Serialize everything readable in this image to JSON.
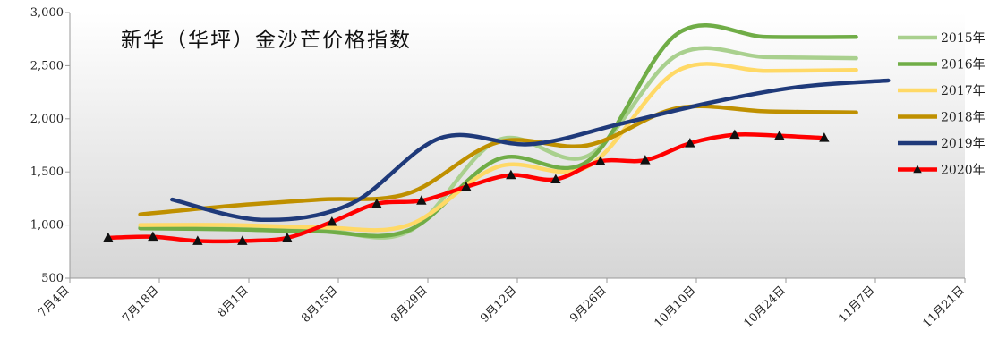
{
  "chart_data": {
    "type": "line",
    "title": "新华（华坪）金沙芒价格指数",
    "xlabel": "",
    "ylabel": "",
    "x_ticks": [
      "7月4日",
      "7月18日",
      "8月1日",
      "8月15日",
      "8月29日",
      "9月12日",
      "9月26日",
      "10月10日",
      "10月24日",
      "11月7日",
      "11月21日"
    ],
    "ylim": [
      500,
      3000
    ],
    "y_ticks": [
      "500",
      "1,000",
      "1,500",
      "2,000",
      "2,500",
      "3,000"
    ],
    "grid": false,
    "legend_position": "right",
    "series": [
      {
        "name": "2015年",
        "color": "#a9d08e",
        "marker": "none",
        "x": [
          "7月15日",
          "7月29日",
          "8月12日",
          "8月26日",
          "9月9日",
          "9月23日",
          "10月7日",
          "10月21日",
          "11月4日"
        ],
        "values": [
          980,
          970,
          960,
          940,
          1800,
          1650,
          2600,
          2580,
          2570
        ]
      },
      {
        "name": "2016年",
        "color": "#70ad47",
        "marker": "none",
        "x": [
          "7月15日",
          "7月29日",
          "8月12日",
          "8月26日",
          "9月9日",
          "9月23日",
          "10月7日",
          "10月21日",
          "11月4日"
        ],
        "values": [
          970,
          960,
          940,
          950,
          1620,
          1600,
          2800,
          2770,
          2770
        ]
      },
      {
        "name": "2017年",
        "color": "#ffd966",
        "marker": "none",
        "x": [
          "7月15日",
          "7月29日",
          "8月12日",
          "8月26日",
          "9月9日",
          "9月23日",
          "10月7日",
          "10月21日",
          "11月4日"
        ],
        "values": [
          1000,
          1000,
          980,
          1000,
          1550,
          1550,
          2450,
          2450,
          2460
        ]
      },
      {
        "name": "2018年",
        "color": "#bf9000",
        "marker": "none",
        "x": [
          "7月15日",
          "7月29日",
          "8月12日",
          "8月26日",
          "9月9日",
          "9月23日",
          "10月7日",
          "10月21日",
          "11月4日"
        ],
        "values": [
          1100,
          1180,
          1240,
          1300,
          1780,
          1750,
          2100,
          2070,
          2060
        ]
      },
      {
        "name": "2019年",
        "color": "#1f3a7a",
        "marker": "none",
        "x": [
          "7月20日",
          "8月3日",
          "8月17日",
          "8月31日",
          "9月14日",
          "9月28日",
          "10月12日",
          "10月26日",
          "11月9日"
        ],
        "values": [
          1240,
          1050,
          1200,
          1820,
          1760,
          1950,
          2150,
          2300,
          2360
        ]
      },
      {
        "name": "2020年",
        "color": "#ff0000",
        "marker": "triangle",
        "x": [
          "7月10日",
          "7月17日",
          "7月24日",
          "7月31日",
          "8月7日",
          "8月14日",
          "8月21日",
          "8月28日",
          "9月4日",
          "9月11日",
          "9月18日",
          "9月25日",
          "10月2日",
          "10月9日",
          "10月16日",
          "10月23日",
          "10月30日"
        ],
        "values": [
          880,
          890,
          850,
          850,
          880,
          1030,
          1200,
          1230,
          1360,
          1470,
          1430,
          1600,
          1610,
          1770,
          1850,
          1840,
          1820
        ]
      }
    ]
  }
}
